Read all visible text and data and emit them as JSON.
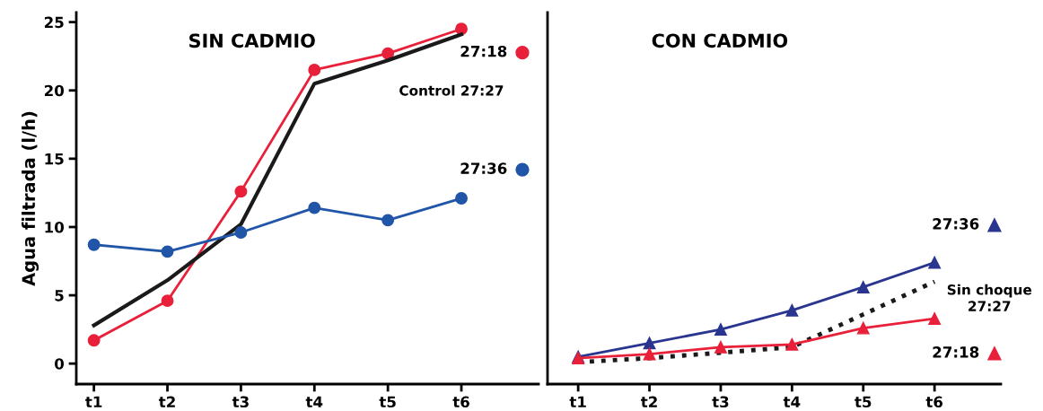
{
  "chart_data": [
    {
      "type": "line",
      "title": "SIN CADMIO",
      "ylabel": "Agua filtrada (l/h)",
      "categories": [
        "t1",
        "t2",
        "t3",
        "t4",
        "t5",
        "t6"
      ],
      "ylim": [
        -1.5,
        25.7
      ],
      "yticks": [
        0,
        5,
        10,
        15,
        20,
        25
      ],
      "grid": false,
      "legend": "right",
      "series": [
        {
          "name": "27:18",
          "color": "#e8203a",
          "marker": "circle",
          "line_style": "solid",
          "values": [
            1.7,
            4.6,
            12.6,
            21.5,
            22.7,
            24.5
          ]
        },
        {
          "name": "Control 27:27",
          "color": "#1a1a1a",
          "marker": "none",
          "line_style": "solid",
          "values": [
            2.8,
            6.1,
            10.2,
            20.5,
            22.2,
            24.1
          ]
        },
        {
          "name": "27:36",
          "color": "#2155a8",
          "marker": "circle",
          "line_style": "solid",
          "values": [
            8.7,
            8.2,
            9.6,
            11.4,
            10.5,
            12.1
          ]
        }
      ]
    },
    {
      "type": "line",
      "title": "CON CADMIO",
      "categories": [
        "t1",
        "t2",
        "t3",
        "t4",
        "t5",
        "t6"
      ],
      "ylim": [
        -1.5,
        25.7
      ],
      "tick_labels": "x",
      "grid": false,
      "legend": "right",
      "series": [
        {
          "name": "27:36",
          "color": "#2a3590",
          "marker": "triangle",
          "line_style": "solid",
          "values": [
            0.5,
            1.5,
            2.5,
            3.9,
            5.6,
            7.4
          ]
        },
        {
          "name": "Sin choque\n27:27",
          "color": "#1a1a1a",
          "marker": "none",
          "line_style": "dotted",
          "values": [
            0.1,
            0.4,
            0.8,
            1.2,
            3.6,
            6.0
          ]
        },
        {
          "name": "27:18",
          "color": "#e8203a",
          "marker": "triangle",
          "line_style": "solid",
          "values": [
            0.4,
            0.7,
            1.2,
            1.4,
            2.6,
            3.3
          ]
        }
      ]
    }
  ]
}
